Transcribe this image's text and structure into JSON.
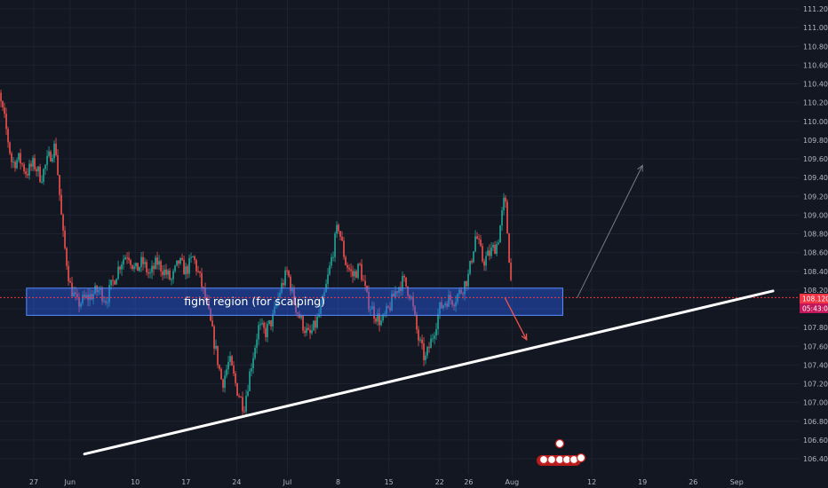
{
  "chart_data": {
    "type": "candlestick",
    "y_ticks": [
      "111.200",
      "111.000",
      "110.800",
      "110.600",
      "110.400",
      "110.200",
      "110.000",
      "109.800",
      "109.600",
      "109.400",
      "109.200",
      "109.000",
      "108.800",
      "108.600",
      "108.400",
      "108.200",
      "108.000",
      "107.800",
      "107.600",
      "107.400",
      "107.200",
      "107.000",
      "106.800",
      "106.600",
      "106.400"
    ],
    "x_ticks": [
      "27",
      "Jun",
      "10",
      "17",
      "24",
      "Jul",
      "8",
      "15",
      "22",
      "26",
      "Aug",
      "12",
      "19",
      "26",
      "Sep"
    ],
    "ylim": [
      106.4,
      111.2
    ],
    "grid": true,
    "last_price": "108.120",
    "countdown": "05:43:09",
    "zone": {
      "label": "fight region (for scalping)",
      "top": 108.22,
      "bottom": 107.93
    },
    "trendline": [
      {
        "x": "2020-06-03",
        "y": 106.45
      },
      {
        "x": "2020-09-06",
        "y": 108.19
      }
    ],
    "projection_up": [
      {
        "x": "2020-08-10",
        "y": 108.12
      },
      {
        "x": "2020-08-19",
        "y": 109.53
      }
    ],
    "projection_down": [
      {
        "x": "2020-07-31",
        "y": 108.12
      },
      {
        "x": "2020-08-03",
        "y": 107.67
      }
    ],
    "colors": {
      "up": "#26a69a",
      "down": "#ef5350",
      "zone": "#2962ff",
      "trendline": "#ffffff",
      "price_line": "#f23645"
    },
    "close_path": [
      [
        "2020-05-21",
        110.6
      ],
      [
        "2020-05-22",
        110.35
      ],
      [
        "2020-05-23",
        110.0
      ],
      [
        "2020-05-24",
        109.55
      ],
      [
        "2020-05-25",
        109.6
      ],
      [
        "2020-05-26",
        109.45
      ],
      [
        "2020-05-27",
        109.55
      ],
      [
        "2020-05-28",
        109.4
      ],
      [
        "2020-05-29",
        109.6
      ],
      [
        "2020-05-30",
        109.75
      ],
      [
        "2020-05-31",
        108.8
      ],
      [
        "2020-06-01",
        108.25
      ],
      [
        "2020-06-02",
        108.05
      ],
      [
        "2020-06-03",
        108.1
      ],
      [
        "2020-06-04",
        108.15
      ],
      [
        "2020-06-05",
        108.2
      ],
      [
        "2020-06-06",
        108.1
      ],
      [
        "2020-06-07",
        108.3
      ],
      [
        "2020-06-08",
        108.5
      ],
      [
        "2020-06-09",
        108.6
      ],
      [
        "2020-06-10",
        108.4
      ],
      [
        "2020-06-11",
        108.5
      ],
      [
        "2020-06-12",
        108.35
      ],
      [
        "2020-06-13",
        108.5
      ],
      [
        "2020-06-14",
        108.4
      ],
      [
        "2020-06-15",
        108.3
      ],
      [
        "2020-06-16",
        108.5
      ],
      [
        "2020-06-17",
        108.4
      ],
      [
        "2020-06-18",
        108.55
      ],
      [
        "2020-06-19",
        108.3
      ],
      [
        "2020-06-20",
        108.0
      ],
      [
        "2020-06-21",
        107.6
      ],
      [
        "2020-06-22",
        107.2
      ],
      [
        "2020-06-23",
        107.45
      ],
      [
        "2020-06-24",
        107.15
      ],
      [
        "2020-06-25",
        106.95
      ],
      [
        "2020-06-26",
        107.4
      ],
      [
        "2020-06-27",
        107.8
      ],
      [
        "2020-06-28",
        107.75
      ],
      [
        "2020-06-29",
        107.9
      ],
      [
        "2020-06-30",
        108.2
      ],
      [
        "2020-07-01",
        108.4
      ],
      [
        "2020-07-02",
        108.05
      ],
      [
        "2020-07-03",
        107.85
      ],
      [
        "2020-07-04",
        107.7
      ],
      [
        "2020-07-05",
        107.85
      ],
      [
        "2020-07-06",
        108.1
      ],
      [
        "2020-07-07",
        108.5
      ],
      [
        "2020-07-08",
        108.9
      ],
      [
        "2020-07-09",
        108.5
      ],
      [
        "2020-07-10",
        108.35
      ],
      [
        "2020-07-11",
        108.45
      ],
      [
        "2020-07-12",
        108.1
      ],
      [
        "2020-07-13",
        107.95
      ],
      [
        "2020-07-14",
        107.85
      ],
      [
        "2020-07-15",
        108.0
      ],
      [
        "2020-07-16",
        108.2
      ],
      [
        "2020-07-17",
        108.3
      ],
      [
        "2020-07-18",
        108.15
      ],
      [
        "2020-07-19",
        107.7
      ],
      [
        "2020-07-20",
        107.45
      ],
      [
        "2020-07-21",
        107.7
      ],
      [
        "2020-07-22",
        108.0
      ],
      [
        "2020-07-23",
        108.1
      ],
      [
        "2020-07-24",
        108.1
      ],
      [
        "2020-07-25",
        108.2
      ],
      [
        "2020-07-26",
        108.35
      ],
      [
        "2020-07-27",
        108.8
      ],
      [
        "2020-07-28",
        108.5
      ],
      [
        "2020-07-29",
        108.6
      ],
      [
        "2020-07-30",
        108.7
      ],
      [
        "2020-07-31",
        109.2
      ],
      [
        "2020-08-01",
        108.12
      ]
    ]
  }
}
